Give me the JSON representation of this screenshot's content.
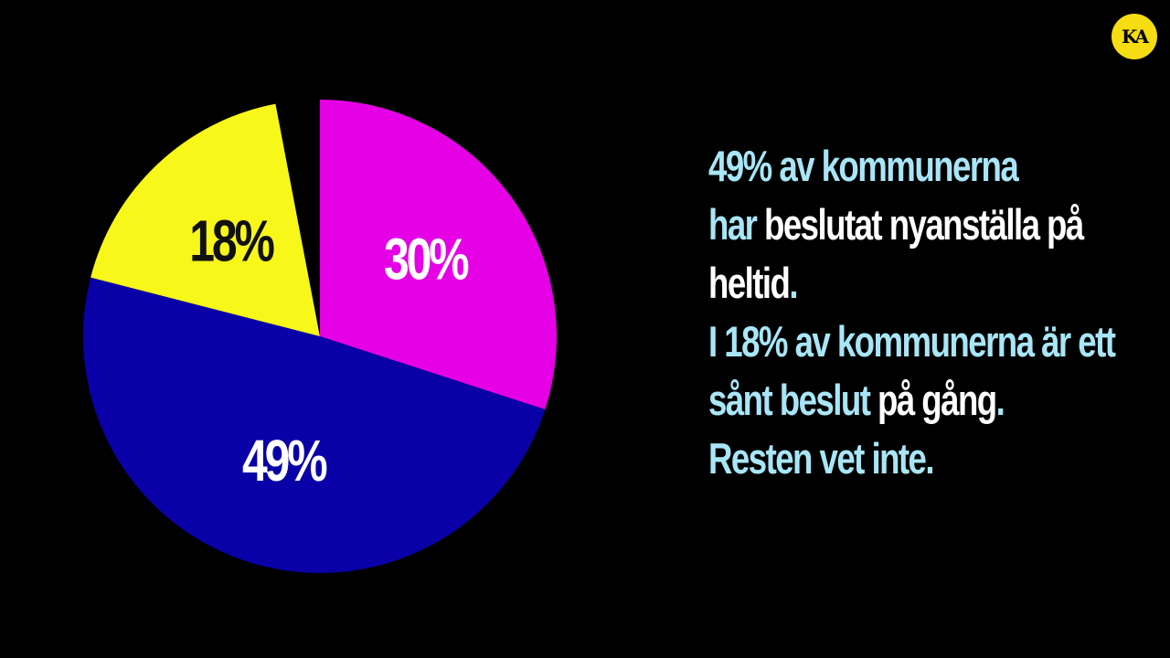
{
  "logo_text": "KA",
  "colors": {
    "background": "#000000",
    "accent_text": "#a8e6f7",
    "body_text": "#ffffff",
    "logo_bg": "#f5dc13"
  },
  "chart_data": {
    "type": "pie",
    "slices": [
      {
        "label": "30%",
        "value": 30,
        "color": "#e600e6",
        "label_color": "#ffffff"
      },
      {
        "label": "49%",
        "value": 49,
        "color": "#0a00a8",
        "label_color": "#ffffff"
      },
      {
        "label": "18%",
        "value": 18,
        "color": "#f7f71a",
        "label_color": "#111111"
      },
      {
        "label": "",
        "value": 3,
        "color": "#000000",
        "label_color": "#ffffff"
      }
    ]
  },
  "caption": {
    "line1_a": "49% av kommunerna",
    "line2_a": "har",
    "line2_b": " beslutat nyanställa på",
    "line3_a": "heltid",
    "line3_b": ".",
    "line4_a": "I 18% av kommunerna är ett",
    "line5_a": "sånt beslut",
    "line5_b": " på gång",
    "line5_c": ".",
    "line6_a": "Resten vet inte."
  }
}
